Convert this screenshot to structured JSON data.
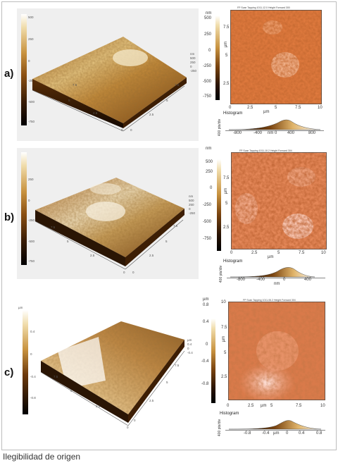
{
  "caption": "Ilegibilidad de origen",
  "panels": [
    {
      "label": "a)",
      "map_title": "FP Scan Tapping 1011-12.0 Height Forward 300",
      "left_bar_ticks": [
        "500",
        "250",
        "0",
        "-250",
        "-500",
        "-750"
      ],
      "surface_ticks_left": [
        "7.5",
        "5",
        "2.5",
        "0"
      ],
      "surface_ticks_right": [
        "10",
        "7.5",
        "5",
        "2.5",
        "0"
      ],
      "surface_z_ticks": [
        "nm",
        "500",
        "250",
        "0",
        "-250"
      ],
      "cb_unit": "nm",
      "cb_ticks": [
        "500",
        "250",
        "0",
        "-250",
        "-500",
        "-750"
      ],
      "y_ticks": [
        "7.5",
        "5",
        "2.5"
      ],
      "y_unit": "µm",
      "x_ticks": [
        "0",
        "2.5",
        "5",
        "7.5",
        "10"
      ],
      "x_unit": "µm",
      "hist_title": "Histogram",
      "hist_ylabel": "400 pts/div",
      "hist_ticks": [
        "-800",
        "-400",
        "0",
        "400",
        "800"
      ],
      "hist_unit": "nm"
    },
    {
      "label": "b)",
      "map_title": "FP Scan Tapping 1011-10.2 Height Forward 304",
      "left_bar_ticks": [
        "250",
        "0",
        "-250",
        "-500",
        "-750"
      ],
      "surface_ticks_left": [
        "7.5",
        "5",
        "2.5",
        "0"
      ],
      "surface_ticks_right": [
        "10",
        "7.5",
        "5",
        "2.5",
        "0"
      ],
      "surface_z_ticks": [
        "nm",
        "500",
        "250",
        "0",
        "-250"
      ],
      "cb_unit": "nm",
      "cb_ticks": [
        "500",
        "250",
        "0",
        "-250",
        "-500",
        "-750"
      ],
      "y_ticks": [
        "7.5",
        "5",
        "2.5"
      ],
      "y_unit": "µm",
      "x_ticks": [
        "0",
        "2.5",
        "5",
        "7.5",
        "10"
      ],
      "x_unit": "µm",
      "hist_title": "Histogram",
      "hist_ylabel": "400 pts/div",
      "hist_ticks": [
        "-800",
        "-400",
        "0",
        "400"
      ],
      "hist_unit": "nm"
    },
    {
      "label": "c)",
      "map_title": "FP Scan Tapping 1011-06.2 Height Forward 304",
      "left_bar_ticks": [
        "µm",
        "0.4",
        "0",
        "-0.4",
        "-0.8"
      ],
      "surface_ticks_left": [
        "7.5",
        "5",
        "2.5",
        "0"
      ],
      "surface_ticks_right": [
        "10",
        "7.5",
        "5",
        "2.5",
        "0"
      ],
      "surface_z_ticks": [
        "µm",
        "0.4",
        "0",
        "-0.4"
      ],
      "cb_unit": "µm",
      "cb_ticks": [
        "0.8",
        "0.4",
        "0",
        "-0.4",
        "-0.8"
      ],
      "y_ticks": [
        "7.5",
        "5",
        "2.5"
      ],
      "y_unit": "µm",
      "x_ticks": [
        "0",
        "2.5",
        "5",
        "7.5",
        "10"
      ],
      "x_unit": "µm",
      "hist_title": "Histogram",
      "hist_ylabel": "400 pts/div",
      "hist_ticks": [
        "-0.8",
        "-0.4",
        "0",
        "0.4",
        "0.8"
      ],
      "hist_unit": "µm"
    }
  ]
}
